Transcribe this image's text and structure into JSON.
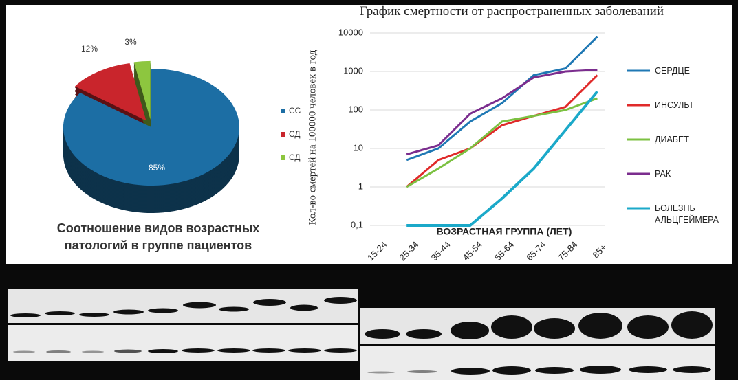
{
  "chart_data": [
    {
      "type": "pie",
      "title": "Соотношение видов возрастных патологий в группе пациентов",
      "categories": [
        "СС",
        "СД",
        "СД"
      ],
      "values": [
        85,
        12,
        3
      ],
      "value_labels": [
        "85%",
        "12%",
        "3%"
      ],
      "colors": [
        "#1c6ea4",
        "#c9252c",
        "#8dc63f"
      ]
    },
    {
      "type": "line",
      "title": "График смертности от распространенных заболеваний",
      "y_label": "Кол-во смертей на 100000 человек в год",
      "x_label": "ВОЗРАСТНАЯ ГРУППА (ЛЕТ)",
      "categories": [
        "15-24",
        "25-34",
        "35-44",
        "45-54",
        "55-64",
        "65-74",
        "75-84",
        "85+"
      ],
      "log_scale": true,
      "grid": true,
      "ylim": [
        0.1,
        10000
      ],
      "yticks": [
        {
          "value": 0.1,
          "label": "0,1"
        },
        1,
        10,
        100,
        1000,
        10000
      ],
      "series": [
        {
          "name": "СЕРДЦЕ",
          "color": "#1f78b4",
          "values": [
            null,
            5,
            10,
            50,
            150,
            800,
            1200,
            8000
          ]
        },
        {
          "name": "ИНСУЛЬТ",
          "color": "#e02a2a",
          "values": [
            null,
            1,
            5,
            10,
            40,
            70,
            120,
            800
          ]
        },
        {
          "name": "ДИАБЕТ",
          "color": "#7cc142",
          "values": [
            null,
            1,
            3,
            10,
            50,
            70,
            100,
            200
          ]
        },
        {
          "name": "РАК",
          "color": "#7b2d8e",
          "values": [
            null,
            7,
            12,
            80,
            200,
            700,
            1000,
            1100
          ]
        },
        {
          "name": "БОЛЕЗНЬ АЛЬЦГЕЙМЕРА",
          "color": "#1ba9c9",
          "values": [
            null,
            0.1,
            0.1,
            0.1,
            0.5,
            3,
            30,
            300
          ]
        }
      ]
    }
  ]
}
